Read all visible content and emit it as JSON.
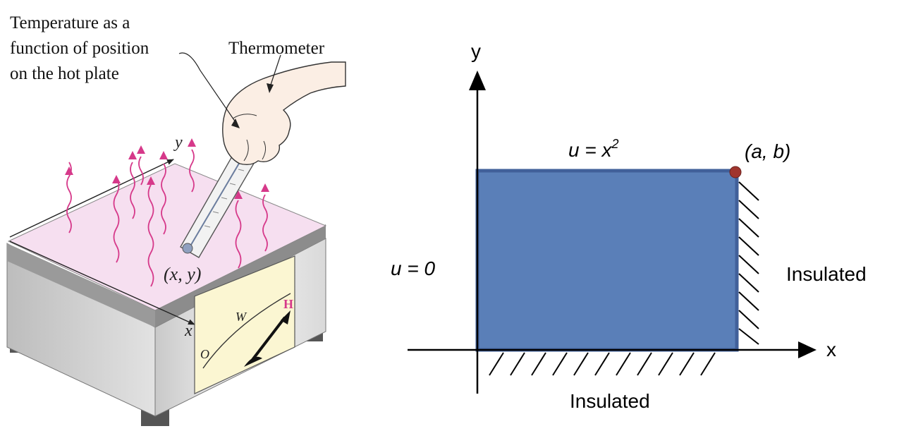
{
  "illustration": {
    "callout_line1": "Temperature as a",
    "callout_line2": "function of position",
    "callout_line3": "on the hot plate",
    "thermometer_label": "Thermometer",
    "axis_y": "y",
    "axis_x": "x",
    "point_label": "(x, y)",
    "dial_low": "O",
    "dial_mid": "W",
    "dial_high": "H",
    "colors": {
      "plate_top": "#f6dff0",
      "heat_waves": "#d6398a",
      "dial_face": "#fbf6d2",
      "dial_high": "#d6398a"
    }
  },
  "diagram": {
    "y_axis_label": "y",
    "x_axis_label": "x",
    "top_boundary": {
      "u": "u = x",
      "exp": "2"
    },
    "corner_label": "(a, b)",
    "left_boundary": "u = 0",
    "right_boundary": "Insulated",
    "bottom_boundary": "Insulated",
    "colors": {
      "plate_fill": "#5a7fb8",
      "plate_border": "#41609a",
      "corner_dot": "#a0352e"
    }
  }
}
